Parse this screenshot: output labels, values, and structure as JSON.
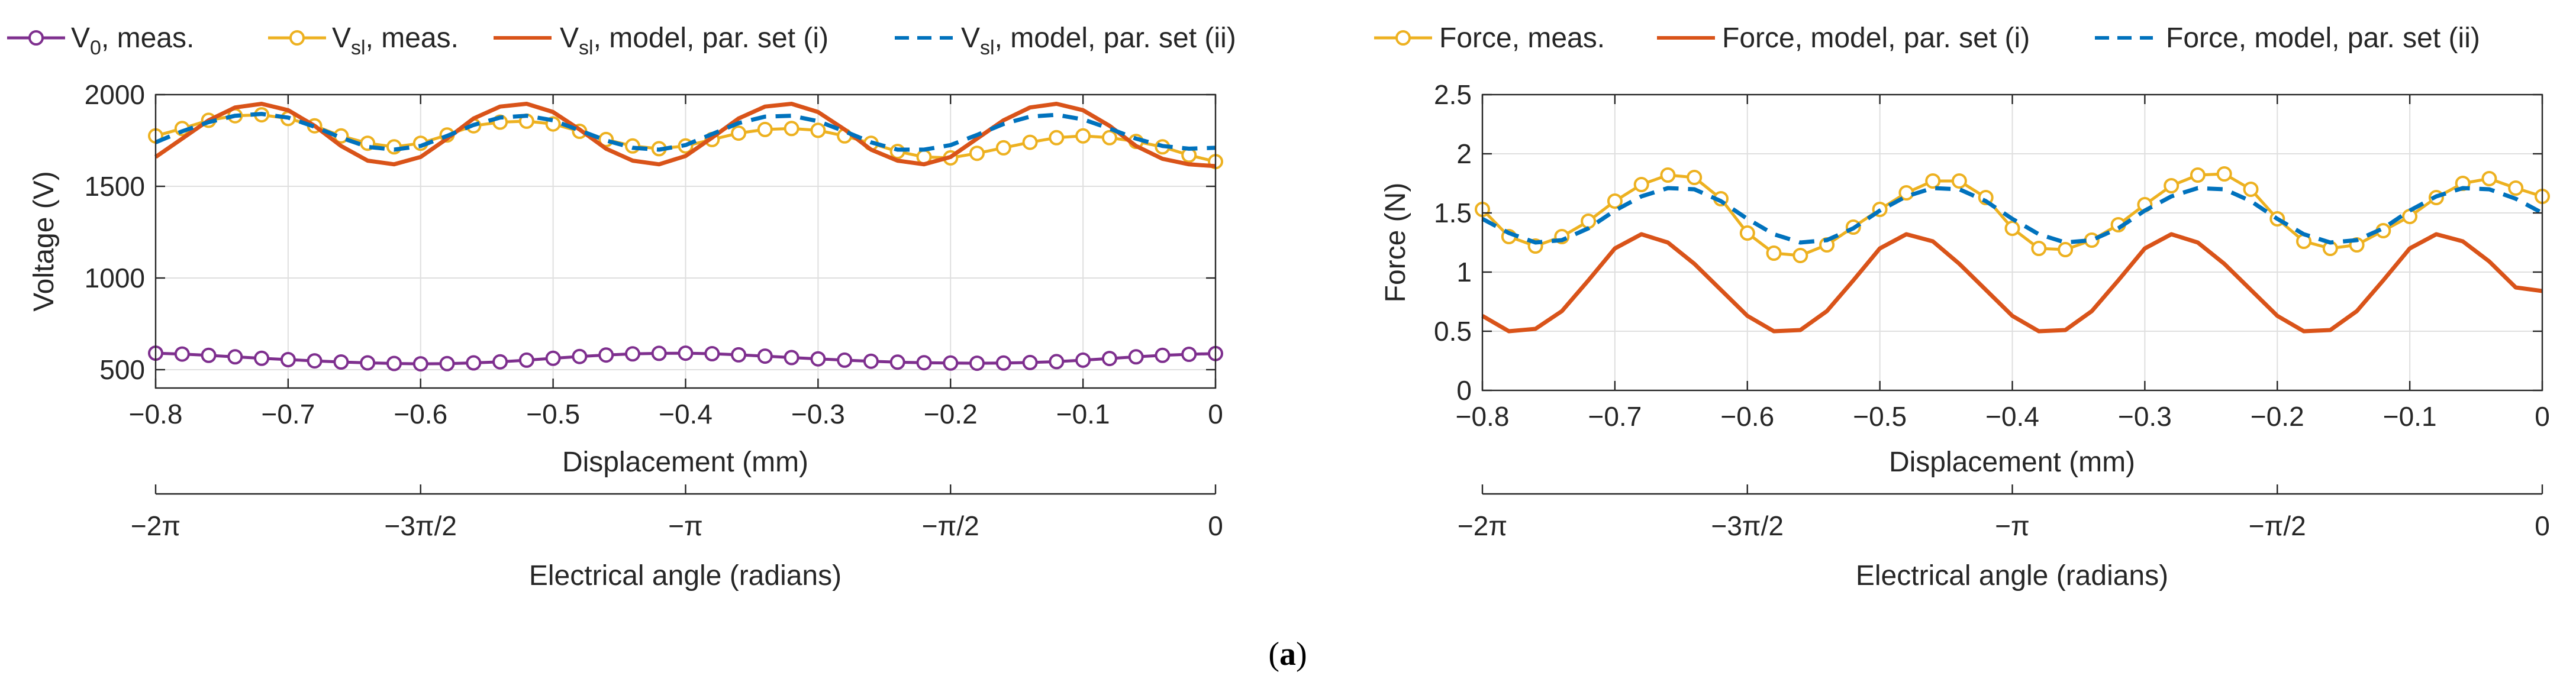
{
  "caption": {
    "label": "a"
  },
  "colors": {
    "purple": "#7e2f8e",
    "yellow": "#edb120",
    "orange": "#d95319",
    "blue": "#0072bd",
    "axis": "#262626",
    "grid": "#dfdfdf"
  },
  "chart_data": [
    {
      "type": "line",
      "id": "voltage",
      "title": "",
      "xlabel": "Displacement (mm)",
      "ylabel": "Voltage (V)",
      "xlim": [
        -0.8,
        0
      ],
      "ylim": [
        400,
        2000
      ],
      "xticks": [
        -0.8,
        -0.7,
        -0.6,
        -0.5,
        -0.4,
        -0.3,
        -0.2,
        -0.1,
        0
      ],
      "xtick_labels": [
        "−0.8",
        "−0.7",
        "−0.6",
        "−0.5",
        "−0.4",
        "−0.3",
        "−0.2",
        "−0.1",
        "0"
      ],
      "yticks": [
        500,
        1000,
        1500,
        2000
      ],
      "ytick_labels": [
        "500",
        "1000",
        "1500",
        "2000"
      ],
      "grid": true,
      "secondary_x": {
        "xlabel": "Electrical angle (radians)",
        "ticks": [
          -0.8,
          -0.6,
          -0.4,
          -0.2,
          0
        ],
        "tick_labels": [
          "−2π",
          "−3π/2",
          "−π",
          "−π/2",
          "0"
        ]
      },
      "legend": [
        {
          "series": "v0_meas",
          "label_main": "V",
          "label_sub": "0",
          "label_rest": ", meas."
        },
        {
          "series": "vsl_meas",
          "label_main": "V",
          "label_sub": "sl",
          "label_rest": ", meas."
        },
        {
          "series": "vsl_model_i",
          "label_main": "V",
          "label_sub": "sl",
          "label_rest": ", model, par. set (i)"
        },
        {
          "series": "vsl_model_ii",
          "label_main": "V",
          "label_sub": "sl",
          "label_rest": ", model, par. set (ii)"
        }
      ],
      "series": [
        {
          "id": "v0_meas",
          "name": "V0, meas.",
          "color": "purple",
          "style": "solid",
          "marker": "circle",
          "x": [
            -0.8,
            -0.78,
            -0.76,
            -0.74,
            -0.72,
            -0.7,
            -0.68,
            -0.66,
            -0.64,
            -0.62,
            -0.6,
            -0.58,
            -0.56,
            -0.54,
            -0.52,
            -0.5,
            -0.48,
            -0.46,
            -0.44,
            -0.42,
            -0.4,
            -0.38,
            -0.36,
            -0.34,
            -0.32,
            -0.3,
            -0.28,
            -0.26,
            -0.24,
            -0.22,
            -0.2,
            -0.18,
            -0.16,
            -0.14,
            -0.12,
            -0.1,
            -0.08,
            -0.06,
            -0.04,
            -0.02,
            0
          ],
          "y": [
            590,
            585,
            578,
            570,
            562,
            555,
            548,
            542,
            537,
            534,
            532,
            533,
            537,
            543,
            552,
            562,
            572,
            580,
            586,
            589,
            590,
            587,
            581,
            574,
            566,
            559,
            552,
            546,
            541,
            538,
            536,
            535,
            536,
            539,
            544,
            552,
            561,
            570,
            578,
            584,
            588
          ]
        },
        {
          "id": "vsl_meas",
          "name": "Vsl, meas.",
          "color": "yellow",
          "style": "solid",
          "marker": "circle",
          "x": [
            -0.8,
            -0.78,
            -0.76,
            -0.74,
            -0.72,
            -0.7,
            -0.68,
            -0.66,
            -0.64,
            -0.62,
            -0.6,
            -0.58,
            -0.56,
            -0.54,
            -0.52,
            -0.5,
            -0.48,
            -0.46,
            -0.44,
            -0.42,
            -0.4,
            -0.38,
            -0.36,
            -0.34,
            -0.32,
            -0.3,
            -0.28,
            -0.26,
            -0.24,
            -0.22,
            -0.2,
            -0.18,
            -0.16,
            -0.14,
            -0.12,
            -0.1,
            -0.08,
            -0.06,
            -0.04,
            -0.02,
            0
          ],
          "y": [
            1775,
            1815,
            1860,
            1885,
            1890,
            1870,
            1830,
            1775,
            1735,
            1715,
            1735,
            1780,
            1830,
            1850,
            1855,
            1840,
            1800,
            1755,
            1720,
            1705,
            1720,
            1755,
            1790,
            1810,
            1815,
            1805,
            1775,
            1735,
            1690,
            1660,
            1655,
            1680,
            1710,
            1740,
            1765,
            1775,
            1765,
            1745,
            1715,
            1670,
            1635
          ]
        },
        {
          "id": "vsl_model_i",
          "name": "Vsl, model, par. set (i)",
          "color": "orange",
          "style": "solid",
          "marker": "none",
          "x": [
            -0.8,
            -0.78,
            -0.76,
            -0.74,
            -0.72,
            -0.7,
            -0.68,
            -0.66,
            -0.64,
            -0.62,
            -0.6,
            -0.58,
            -0.56,
            -0.54,
            -0.52,
            -0.5,
            -0.48,
            -0.46,
            -0.44,
            -0.42,
            -0.4,
            -0.38,
            -0.36,
            -0.34,
            -0.32,
            -0.3,
            -0.28,
            -0.26,
            -0.24,
            -0.22,
            -0.2,
            -0.18,
            -0.16,
            -0.14,
            -0.12,
            -0.1,
            -0.08,
            -0.06,
            -0.04,
            -0.02,
            0
          ],
          "y": [
            1660,
            1760,
            1860,
            1930,
            1950,
            1915,
            1830,
            1720,
            1640,
            1620,
            1660,
            1760,
            1870,
            1935,
            1950,
            1905,
            1810,
            1705,
            1640,
            1620,
            1665,
            1765,
            1870,
            1935,
            1950,
            1905,
            1810,
            1700,
            1640,
            1620,
            1660,
            1760,
            1860,
            1930,
            1950,
            1915,
            1830,
            1720,
            1650,
            1620,
            1610
          ]
        },
        {
          "id": "vsl_model_ii",
          "name": "Vsl, model, par. set (ii)",
          "color": "blue",
          "style": "dashed",
          "marker": "none",
          "x": [
            -0.8,
            -0.78,
            -0.76,
            -0.74,
            -0.72,
            -0.7,
            -0.68,
            -0.66,
            -0.64,
            -0.62,
            -0.6,
            -0.58,
            -0.56,
            -0.54,
            -0.52,
            -0.5,
            -0.48,
            -0.46,
            -0.44,
            -0.42,
            -0.4,
            -0.38,
            -0.36,
            -0.34,
            -0.32,
            -0.3,
            -0.28,
            -0.26,
            -0.24,
            -0.22,
            -0.2,
            -0.18,
            -0.16,
            -0.14,
            -0.12,
            -0.1,
            -0.08,
            -0.06,
            -0.04,
            -0.02,
            0
          ],
          "y": [
            1740,
            1800,
            1850,
            1885,
            1895,
            1875,
            1825,
            1765,
            1715,
            1700,
            1720,
            1775,
            1835,
            1875,
            1885,
            1860,
            1805,
            1750,
            1710,
            1700,
            1725,
            1785,
            1845,
            1880,
            1885,
            1855,
            1800,
            1740,
            1700,
            1700,
            1725,
            1780,
            1840,
            1880,
            1890,
            1865,
            1815,
            1760,
            1720,
            1705,
            1710
          ]
        }
      ]
    },
    {
      "type": "line",
      "id": "force",
      "title": "",
      "xlabel": "Displacement (mm)",
      "ylabel": "Force (N)",
      "xlim": [
        -0.8,
        0
      ],
      "ylim": [
        0,
        2.5
      ],
      "xticks": [
        -0.8,
        -0.7,
        -0.6,
        -0.5,
        -0.4,
        -0.3,
        -0.2,
        -0.1,
        0
      ],
      "xtick_labels": [
        "−0.8",
        "−0.7",
        "−0.6",
        "−0.5",
        "−0.4",
        "−0.3",
        "−0.2",
        "−0.1",
        "0"
      ],
      "yticks": [
        0,
        0.5,
        1,
        1.5,
        2,
        2.5
      ],
      "ytick_labels": [
        "0",
        "0.5",
        "1",
        "1.5",
        "2",
        "2.5"
      ],
      "grid": true,
      "secondary_x": {
        "xlabel": "Electrical angle (radians)",
        "ticks": [
          -0.8,
          -0.6,
          -0.4,
          -0.2,
          0
        ],
        "tick_labels": [
          "−2π",
          "−3π/2",
          "−π",
          "−π/2",
          "0"
        ]
      },
      "legend": [
        {
          "series": "force_meas",
          "label_main": "Force, meas.",
          "label_sub": "",
          "label_rest": ""
        },
        {
          "series": "force_model_i",
          "label_main": "Force, model, par. set (i)",
          "label_sub": "",
          "label_rest": ""
        },
        {
          "series": "force_model_ii",
          "label_main": "Force, model, par. set (ii)",
          "label_sub": "",
          "label_rest": ""
        }
      ],
      "series": [
        {
          "id": "force_meas",
          "name": "Force, meas.",
          "color": "yellow",
          "style": "solid",
          "marker": "circle",
          "x": [
            -0.8,
            -0.78,
            -0.76,
            -0.74,
            -0.72,
            -0.7,
            -0.68,
            -0.66,
            -0.64,
            -0.62,
            -0.6,
            -0.58,
            -0.56,
            -0.54,
            -0.52,
            -0.5,
            -0.48,
            -0.46,
            -0.44,
            -0.42,
            -0.4,
            -0.38,
            -0.36,
            -0.34,
            -0.32,
            -0.3,
            -0.28,
            -0.26,
            -0.24,
            -0.22,
            -0.2,
            -0.18,
            -0.16,
            -0.14,
            -0.12,
            -0.1,
            -0.08,
            -0.06,
            -0.04,
            -0.02,
            0
          ],
          "y": [
            1.53,
            1.3,
            1.22,
            1.3,
            1.43,
            1.6,
            1.74,
            1.82,
            1.8,
            1.62,
            1.33,
            1.16,
            1.14,
            1.23,
            1.38,
            1.53,
            1.67,
            1.77,
            1.77,
            1.63,
            1.37,
            1.2,
            1.19,
            1.27,
            1.4,
            1.57,
            1.73,
            1.82,
            1.83,
            1.7,
            1.45,
            1.26,
            1.2,
            1.23,
            1.35,
            1.47,
            1.63,
            1.75,
            1.79,
            1.71,
            1.64
          ]
        },
        {
          "id": "force_model_i",
          "name": "Force, model, par. set (i)",
          "color": "orange",
          "style": "solid",
          "marker": "none",
          "x": [
            -0.8,
            -0.78,
            -0.76,
            -0.74,
            -0.72,
            -0.7,
            -0.68,
            -0.66,
            -0.64,
            -0.62,
            -0.6,
            -0.58,
            -0.56,
            -0.54,
            -0.52,
            -0.5,
            -0.48,
            -0.46,
            -0.44,
            -0.42,
            -0.4,
            -0.38,
            -0.36,
            -0.34,
            -0.32,
            -0.3,
            -0.28,
            -0.26,
            -0.24,
            -0.22,
            -0.2,
            -0.18,
            -0.16,
            -0.14,
            -0.12,
            -0.1,
            -0.08,
            -0.06,
            -0.04,
            -0.02,
            0
          ],
          "y": [
            0.63,
            0.5,
            0.52,
            0.67,
            0.93,
            1.2,
            1.32,
            1.25,
            1.07,
            0.85,
            0.63,
            0.5,
            0.51,
            0.67,
            0.93,
            1.2,
            1.32,
            1.26,
            1.07,
            0.85,
            0.63,
            0.5,
            0.51,
            0.67,
            0.93,
            1.2,
            1.32,
            1.25,
            1.07,
            0.85,
            0.63,
            0.5,
            0.51,
            0.67,
            0.93,
            1.2,
            1.32,
            1.26,
            1.09,
            0.87,
            0.84
          ]
        },
        {
          "id": "force_model_ii",
          "name": "Force, model, par. set (ii)",
          "color": "blue",
          "style": "dashed",
          "marker": "none",
          "x": [
            -0.8,
            -0.78,
            -0.76,
            -0.74,
            -0.72,
            -0.7,
            -0.68,
            -0.66,
            -0.64,
            -0.62,
            -0.6,
            -0.58,
            -0.56,
            -0.54,
            -0.52,
            -0.5,
            -0.48,
            -0.46,
            -0.44,
            -0.42,
            -0.4,
            -0.38,
            -0.36,
            -0.34,
            -0.32,
            -0.3,
            -0.28,
            -0.26,
            -0.24,
            -0.22,
            -0.2,
            -0.18,
            -0.16,
            -0.14,
            -0.12,
            -0.1,
            -0.08,
            -0.06,
            -0.04,
            -0.02,
            0
          ],
          "y": [
            1.45,
            1.33,
            1.25,
            1.27,
            1.37,
            1.52,
            1.64,
            1.71,
            1.7,
            1.6,
            1.45,
            1.32,
            1.25,
            1.27,
            1.37,
            1.52,
            1.64,
            1.71,
            1.7,
            1.6,
            1.45,
            1.32,
            1.25,
            1.27,
            1.37,
            1.52,
            1.64,
            1.71,
            1.7,
            1.6,
            1.45,
            1.32,
            1.25,
            1.27,
            1.37,
            1.52,
            1.64,
            1.71,
            1.7,
            1.62,
            1.5
          ]
        }
      ]
    }
  ]
}
